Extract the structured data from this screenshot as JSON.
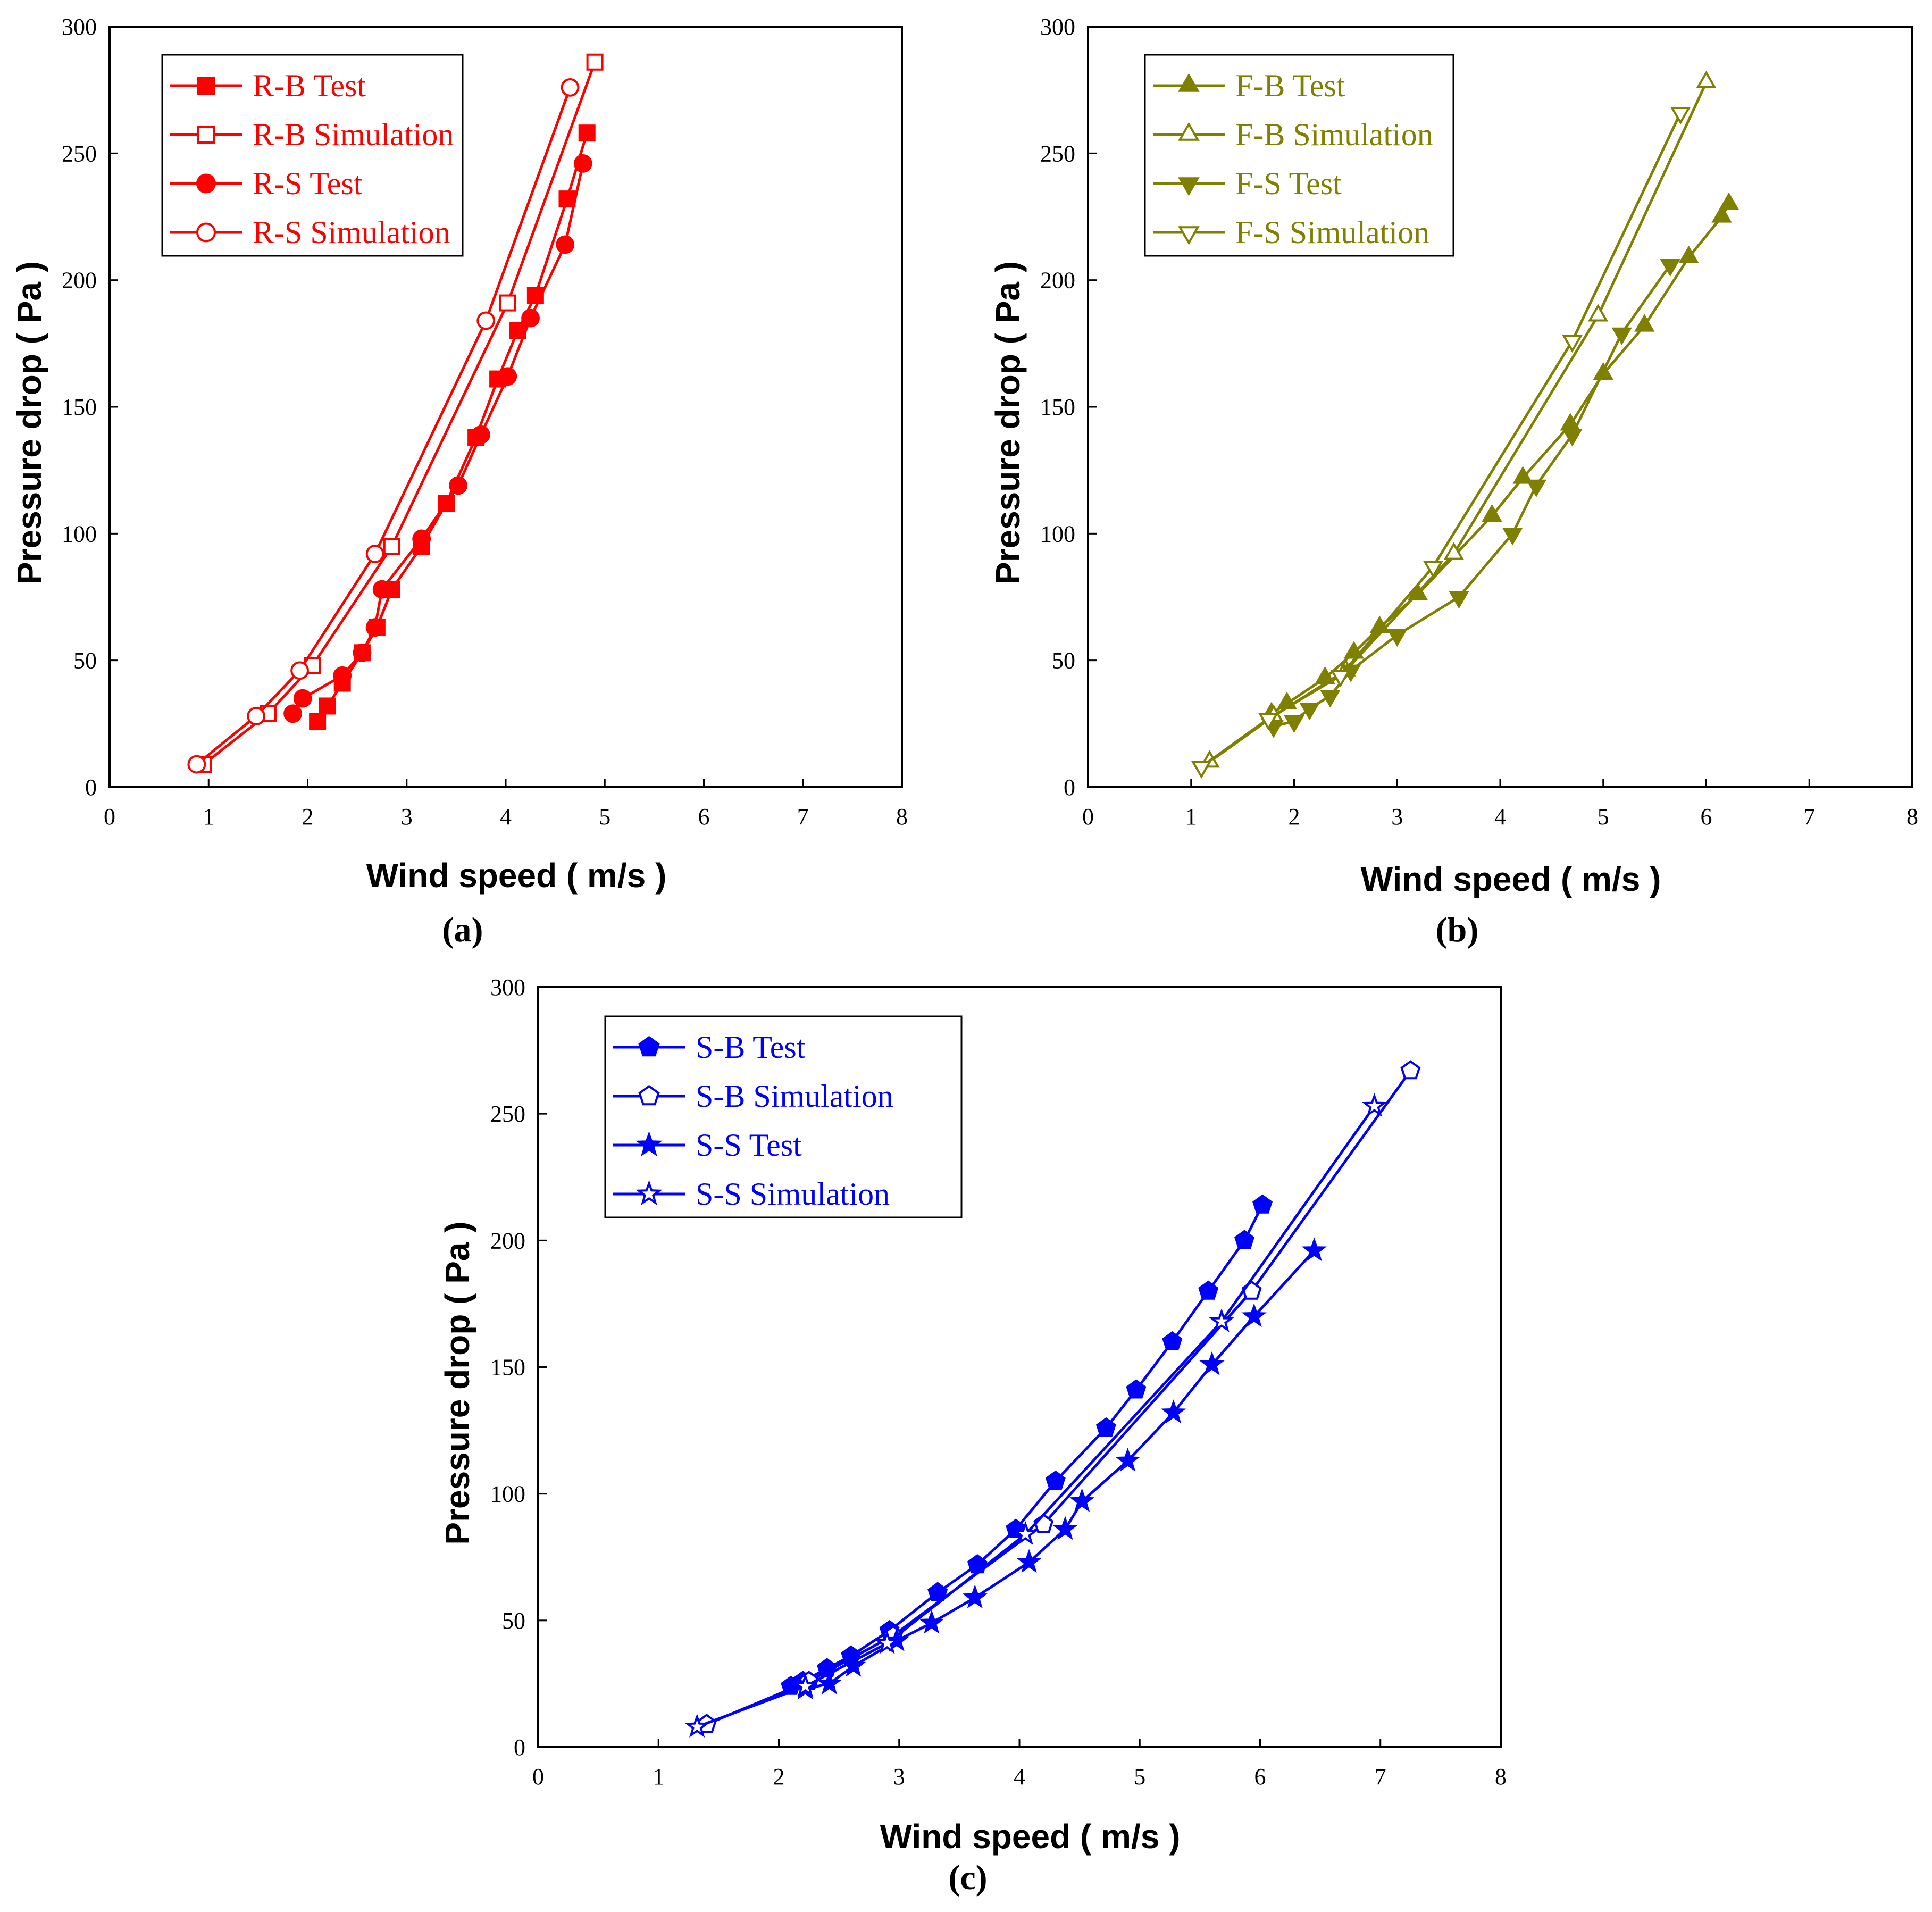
{
  "chart_data": [
    {
      "type": "line",
      "panel_label": "(a)",
      "xlabel": "Wind speed ( m/s )",
      "ylabel": "Pressure drop ( Pa )",
      "xlim": [
        0,
        8
      ],
      "ylim": [
        0,
        300
      ],
      "xticks": [
        "0",
        "1",
        "2",
        "3",
        "4",
        "5",
        "6",
        "7",
        "8"
      ],
      "yticks": [
        "0",
        "50",
        "100",
        "150",
        "200",
        "250",
        "300"
      ],
      "grid": false,
      "legend_position": "top-left",
      "color": "#ff0000",
      "series": [
        {
          "name": "R-B Test",
          "marker": "square",
          "filled": true,
          "x": [
            2.1,
            2.2,
            2.35,
            2.55,
            2.7,
            2.85,
            3.15,
            3.4,
            3.7,
            3.92,
            4.12,
            4.3,
            4.62,
            4.82
          ],
          "y": [
            26,
            32,
            41,
            53,
            63,
            78,
            95,
            112,
            138,
            161,
            180,
            194,
            232,
            258
          ]
        },
        {
          "name": "R-B Simulation",
          "marker": "square",
          "filled": false,
          "x": [
            0.95,
            1.6,
            2.05,
            2.85,
            4.02,
            4.9
          ],
          "y": [
            9,
            29,
            48,
            95,
            191,
            286
          ]
        },
        {
          "name": "R-S Test",
          "marker": "circle",
          "filled": true,
          "x": [
            1.85,
            1.95,
            2.35,
            2.55,
            2.68,
            2.75,
            3.15,
            3.52,
            3.75,
            4.02,
            4.25,
            4.6,
            4.78
          ],
          "y": [
            29,
            35,
            44,
            53,
            63,
            78,
            98,
            119,
            139,
            162,
            185,
            214,
            246
          ]
        },
        {
          "name": "R-S Simulation",
          "marker": "circle",
          "filled": false,
          "x": [
            0.88,
            1.48,
            1.92,
            2.68,
            3.8,
            4.65
          ],
          "y": [
            9,
            28,
            46,
            92,
            184,
            276
          ]
        }
      ]
    },
    {
      "type": "line",
      "panel_label": "(b)",
      "xlabel": "Wind speed ( m/s )",
      "ylabel": "Pressure drop ( Pa )",
      "xlim": [
        0,
        8
      ],
      "ylim": [
        0,
        300
      ],
      "xticks": [
        "0",
        "1",
        "2",
        "3",
        "4",
        "5",
        "6",
        "7",
        "8"
      ],
      "yticks": [
        "0",
        "50",
        "100",
        "150",
        "200",
        "250",
        "300"
      ],
      "grid": false,
      "legend_position": "top-left",
      "color": "#808000",
      "series": [
        {
          "name": "F-B Test",
          "marker": "triangle-up",
          "filled": true,
          "x": [
            1.78,
            1.93,
            2.3,
            2.58,
            2.83,
            3.2,
            3.92,
            4.22,
            4.68,
            5.0,
            5.4,
            5.83,
            6.15,
            6.22
          ],
          "y": [
            29,
            33,
            43,
            53,
            63,
            76,
            107,
            122,
            143,
            163,
            182,
            209,
            225,
            230
          ]
        },
        {
          "name": "F-B Simulation",
          "marker": "triangle-up",
          "filled": false,
          "x": [
            1.18,
            1.8,
            2.5,
            3.55,
            4.95,
            6.0
          ],
          "y": [
            10,
            28,
            46,
            92,
            186,
            278
          ]
        },
        {
          "name": "F-S Test",
          "marker": "triangle-down",
          "filled": true,
          "x": [
            1.8,
            2.0,
            2.15,
            2.35,
            2.55,
            3.0,
            3.6,
            4.12,
            4.35,
            4.7,
            5.18,
            5.65
          ],
          "y": [
            24,
            26,
            31,
            36,
            46,
            60,
            75,
            100,
            119,
            139,
            179,
            206
          ]
        },
        {
          "name": "F-S Simulation",
          "marker": "triangle-down",
          "filled": false,
          "x": [
            1.1,
            1.75,
            2.45,
            3.35,
            4.7,
            5.75
          ],
          "y": [
            8,
            27,
            44,
            87,
            176,
            266
          ]
        }
      ]
    },
    {
      "type": "line",
      "panel_label": "(c)",
      "xlabel": "Wind speed ( m/s )",
      "ylabel": "Pressure drop ( Pa )",
      "xlim": [
        0,
        8
      ],
      "ylim": [
        0,
        300
      ],
      "xticks": [
        "0",
        "1",
        "2",
        "3",
        "4",
        "5",
        "6",
        "7",
        "8"
      ],
      "yticks": [
        "0",
        "50",
        "100",
        "150",
        "200",
        "250",
        "300"
      ],
      "grid": false,
      "legend_position": "top-left",
      "color": "#0000ff",
      "series": [
        {
          "name": "S-B Test",
          "marker": "pentagon",
          "filled": true,
          "x": [
            2.1,
            2.2,
            2.4,
            2.6,
            2.92,
            3.32,
            3.65,
            3.97,
            4.3,
            4.72,
            4.97,
            5.27,
            5.57,
            5.87,
            6.02
          ],
          "y": [
            24,
            26,
            31,
            36,
            46,
            61,
            72,
            86,
            105,
            126,
            141,
            160,
            180,
            200,
            214
          ]
        },
        {
          "name": "S-B Simulation",
          "marker": "pentagon",
          "filled": false,
          "x": [
            1.4,
            2.25,
            2.95,
            4.2,
            5.93,
            7.25
          ],
          "y": [
            9,
            26,
            44,
            88,
            180,
            267
          ]
        },
        {
          "name": "S-S Test",
          "marker": "star",
          "filled": true,
          "x": [
            2.22,
            2.42,
            2.62,
            2.98,
            3.27,
            3.63,
            4.08,
            4.38,
            4.52,
            4.9,
            5.28,
            5.6,
            5.95,
            6.45
          ],
          "y": [
            23,
            25,
            32,
            42,
            49,
            59,
            73,
            86,
            97,
            113,
            132,
            151,
            170,
            196
          ]
        },
        {
          "name": "S-S Simulation",
          "marker": "star",
          "filled": false,
          "x": [
            1.32,
            2.22,
            2.9,
            4.05,
            5.68,
            6.95
          ],
          "y": [
            8,
            24,
            41,
            84,
            168,
            253
          ]
        }
      ]
    }
  ]
}
